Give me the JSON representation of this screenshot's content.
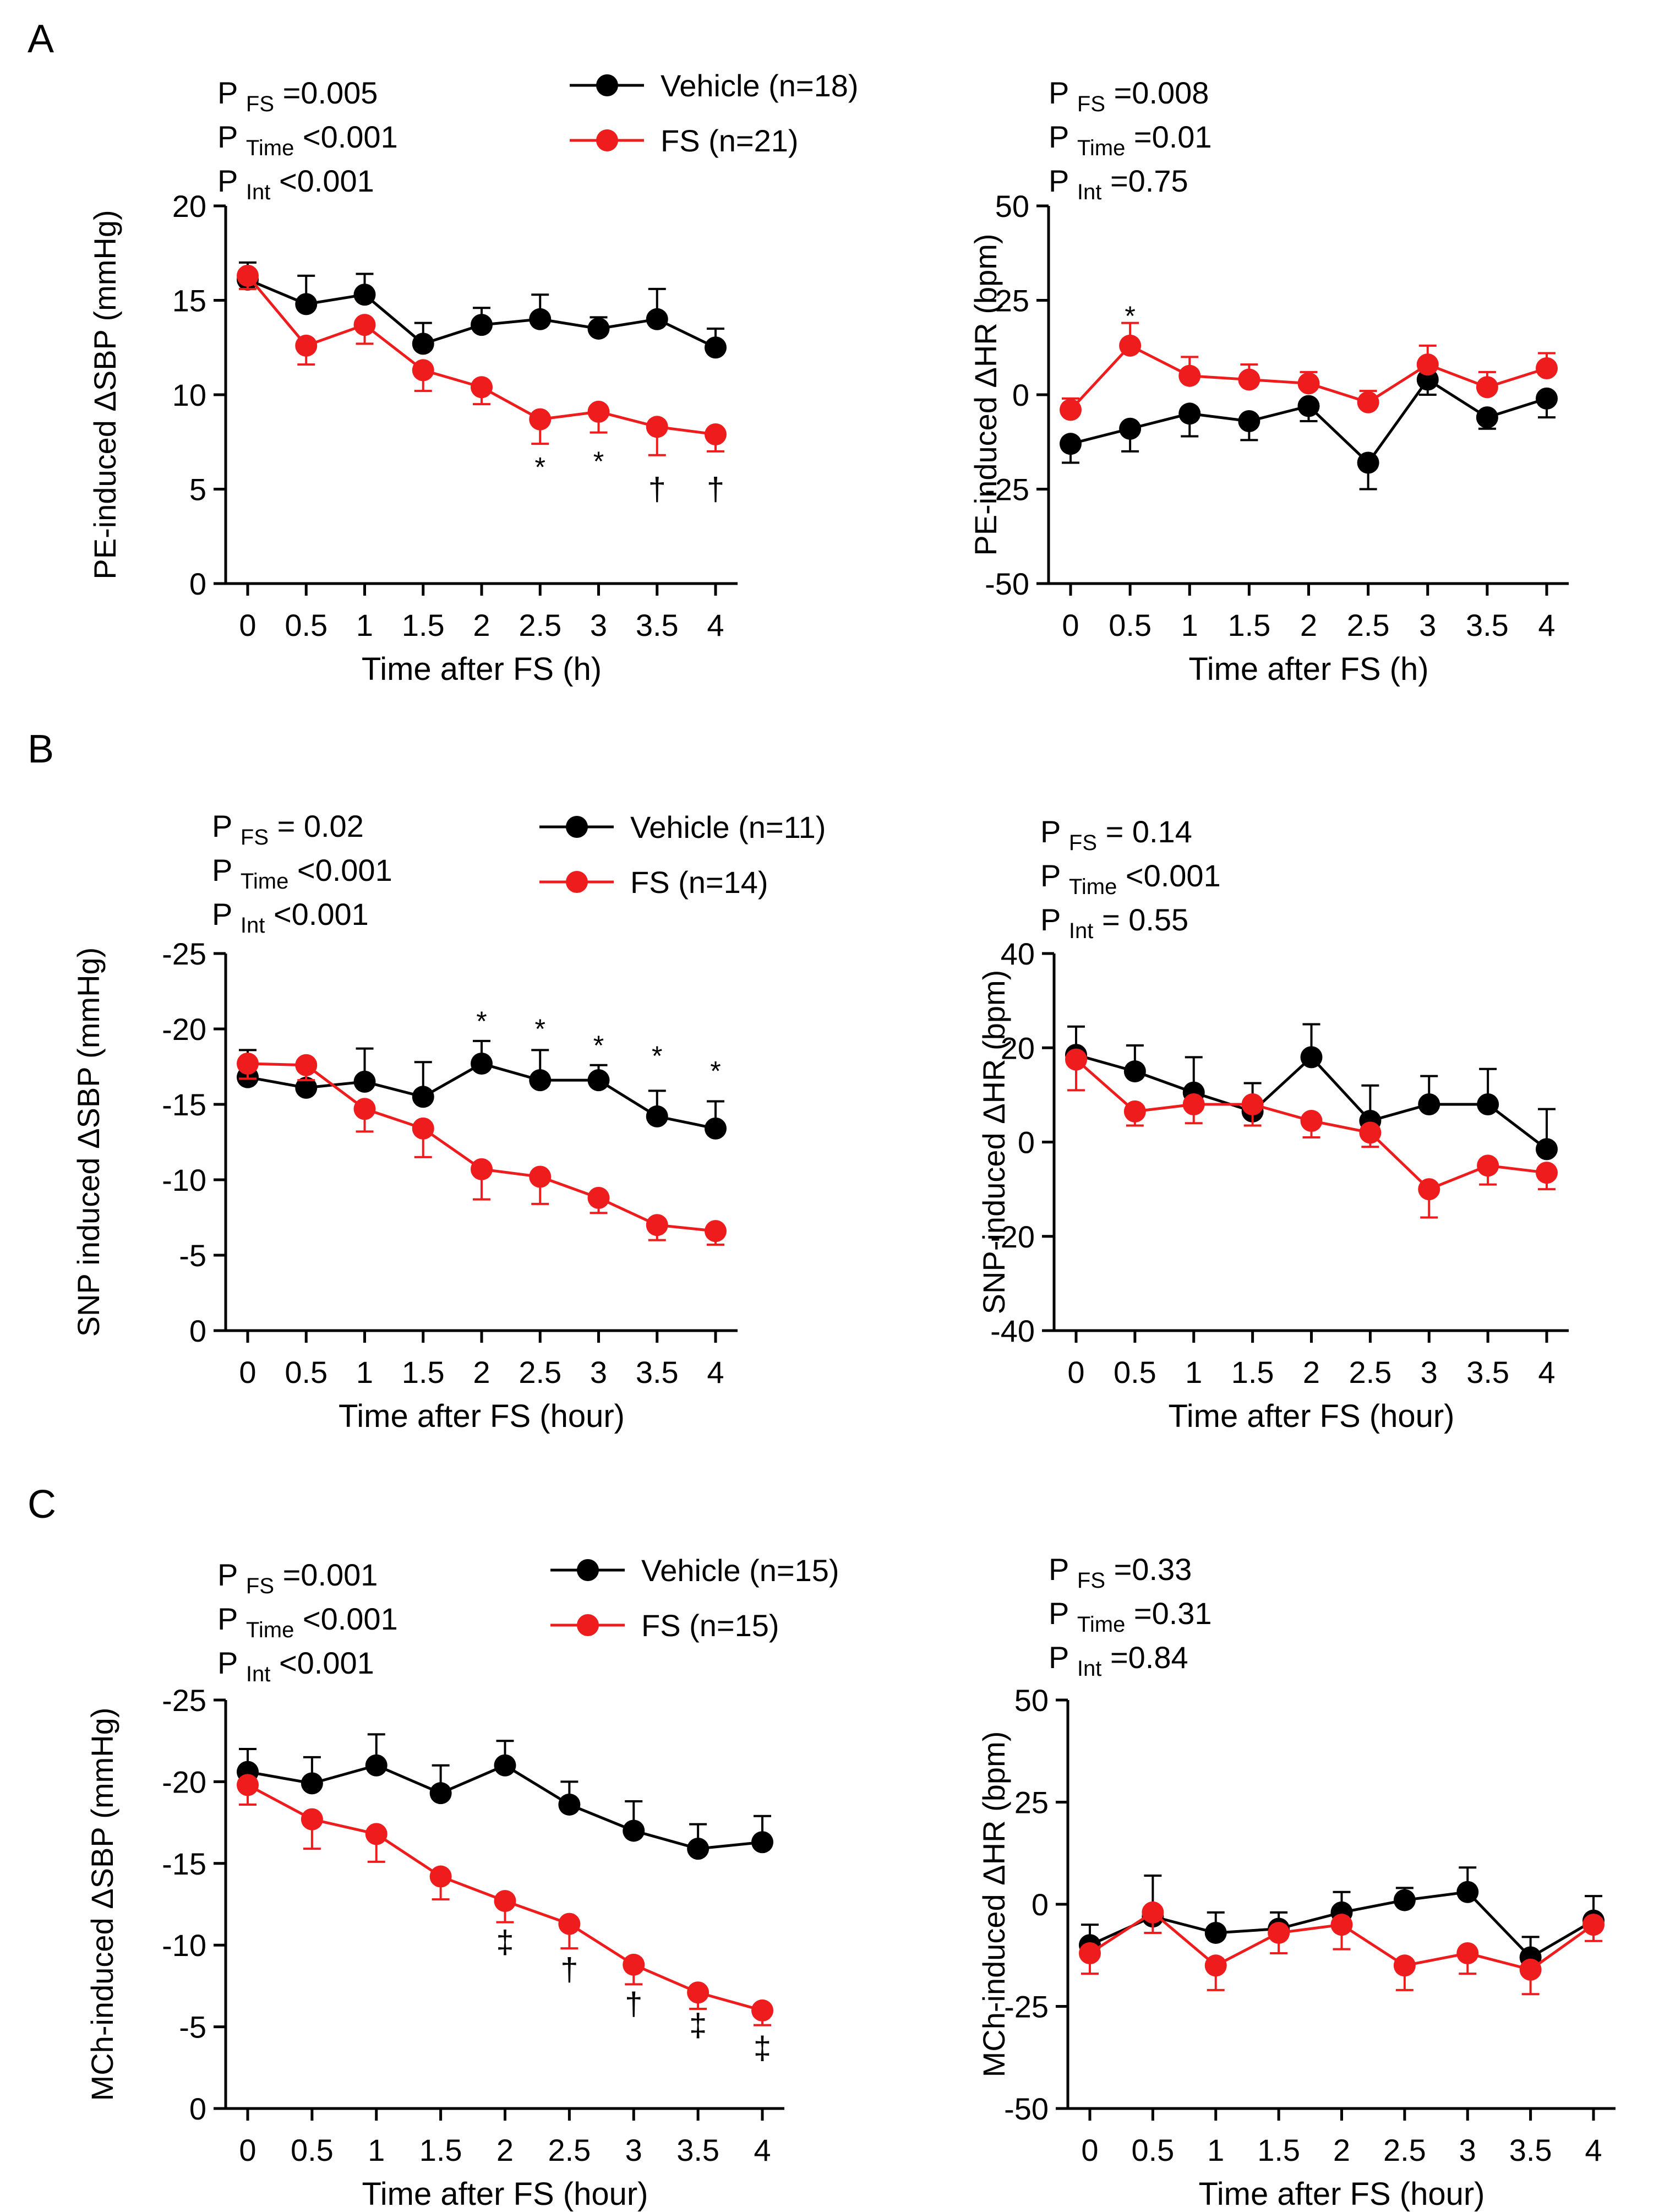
{
  "colors": {
    "vehicle": "#000000",
    "fs": "#ee1c1c"
  },
  "chart_data": [
    {
      "id": "A-left",
      "type": "line",
      "panel_label": "A",
      "title": "",
      "ylabel": "PE-induced ΔSBP (mmHg)",
      "xlabel": "Time after FS (h)",
      "ylim": [
        0,
        20
      ],
      "reversed": false,
      "yticks": [
        0,
        5,
        10,
        15,
        20
      ],
      "ytick_labels": [
        "0",
        "5",
        "10",
        "15",
        "20"
      ],
      "x": [
        0,
        0.5,
        1,
        1.5,
        2,
        2.5,
        3,
        3.5,
        4
      ],
      "xtick_labels": [
        "0",
        "0.5",
        "1",
        "1.5",
        "2",
        "2.5",
        "3",
        "3.5",
        "4"
      ],
      "stats": [
        {
          "p": "P",
          "sub": "FS",
          "val": "=0.005"
        },
        {
          "p": "P",
          "sub": "Time",
          "val": "<0.001"
        },
        {
          "p": "P",
          "sub": "Int",
          "val": "<0.001"
        }
      ],
      "legend": [
        "Vehicle (n=18)",
        "FS (n=21)"
      ],
      "series": [
        {
          "name": "Vehicle (n=18)",
          "key": "vehicle",
          "values": [
            16.1,
            14.8,
            15.3,
            12.7,
            13.7,
            14.0,
            13.5,
            14.0,
            12.5
          ],
          "errors": [
            0.9,
            1.5,
            1.1,
            1.1,
            0.9,
            1.3,
            0.6,
            1.6,
            1.0
          ],
          "err_dir": "up"
        },
        {
          "name": "FS (n=21)",
          "key": "fs",
          "values": [
            16.3,
            12.6,
            13.7,
            11.3,
            10.4,
            8.7,
            9.1,
            8.3,
            7.9
          ],
          "errors": [
            0.7,
            1.0,
            1.0,
            1.1,
            0.9,
            1.3,
            1.1,
            1.5,
            0.9
          ],
          "err_dir": "down"
        }
      ],
      "annotations": [
        {
          "x": 2.5,
          "y": 6.4,
          "text": "*"
        },
        {
          "x": 3,
          "y": 6.7,
          "text": "*"
        },
        {
          "x": 3.5,
          "y": 5.0,
          "text": "†"
        },
        {
          "x": 4,
          "y": 5.0,
          "text": "†"
        }
      ]
    },
    {
      "id": "A-right",
      "type": "line",
      "title": "",
      "ylabel": "PE-induced ΔHR (bpm)",
      "xlabel": "Time after FS (h)",
      "ylim": [
        -50,
        50
      ],
      "reversed": false,
      "yticks": [
        -50,
        -25,
        0,
        25,
        50
      ],
      "ytick_labels": [
        "-50",
        "-25",
        "0",
        "25",
        "50"
      ],
      "x": [
        0,
        0.5,
        1,
        1.5,
        2,
        2.5,
        3,
        3.5,
        4
      ],
      "xtick_labels": [
        "0",
        "0.5",
        "1",
        "1.5",
        "2",
        "2.5",
        "3",
        "3.5",
        "4"
      ],
      "stats": [
        {
          "p": "P",
          "sub": "FS",
          "val": "=0.008"
        },
        {
          "p": "P",
          "sub": "Time",
          "val": "=0.01"
        },
        {
          "p": "P",
          "sub": "Int",
          "val": "=0.75"
        }
      ],
      "legend": [],
      "series": [
        {
          "name": "Vehicle (n=18)",
          "key": "vehicle",
          "values": [
            -13,
            -9,
            -5,
            -7,
            -3,
            -18,
            4,
            -6,
            -1
          ],
          "errors": [
            5,
            6,
            6,
            5,
            4,
            7,
            4,
            3,
            5
          ],
          "err_dir": "down"
        },
        {
          "name": "FS (n=21)",
          "key": "fs",
          "values": [
            -4,
            13,
            5,
            4,
            3,
            -2,
            8,
            2,
            7
          ],
          "errors": [
            3,
            6,
            5,
            4,
            3,
            3,
            5,
            4,
            4
          ],
          "err_dir": "up"
        }
      ],
      "annotations": [
        {
          "x": 0.5,
          "y": 22,
          "text": "*"
        }
      ]
    },
    {
      "id": "B-left",
      "type": "line",
      "panel_label": "B",
      "title": "",
      "ylabel": "SNP induced ΔSBP (mmHg)",
      "xlabel": "Time after FS (hour)",
      "ylim": [
        0,
        -25
      ],
      "reversed": true,
      "yticks": [
        0,
        -5,
        -10,
        -15,
        -20,
        -25
      ],
      "ytick_labels": [
        "0",
        "-5",
        "-10",
        "-15",
        "-20",
        "-25"
      ],
      "x": [
        0,
        0.5,
        1,
        1.5,
        2,
        2.5,
        3,
        3.5,
        4
      ],
      "xtick_labels": [
        "0",
        "0.5",
        "1",
        "1.5",
        "2",
        "2.5",
        "3",
        "3.5",
        "4"
      ],
      "stats": [
        {
          "p": "P",
          "sub": "FS",
          "val": "= 0.02"
        },
        {
          "p": "P",
          "sub": "Time",
          "val": "<0.001"
        },
        {
          "p": "P",
          "sub": "Int",
          "val": "<0.001"
        }
      ],
      "legend": [
        "Vehicle (n=11)",
        "FS (n=14)"
      ],
      "series": [
        {
          "name": "Vehicle (n=11)",
          "key": "vehicle",
          "values": [
            -16.8,
            -16.1,
            -16.5,
            -15.5,
            -17.7,
            -16.6,
            -16.6,
            -14.2,
            -13.4
          ],
          "errors": [
            1.8,
            1.2,
            2.2,
            2.3,
            1.5,
            2.0,
            1.0,
            1.7,
            1.8
          ],
          "err_dir": "up"
        },
        {
          "name": "FS (n=14)",
          "key": "fs",
          "values": [
            -17.7,
            -17.6,
            -14.7,
            -13.4,
            -10.7,
            -10.2,
            -8.8,
            -7.0,
            -6.6
          ],
          "errors": [
            1.0,
            1.0,
            1.5,
            1.9,
            2.0,
            1.8,
            1.0,
            1.0,
            0.9
          ],
          "err_dir": "down"
        }
      ],
      "annotations": [
        {
          "x": 2,
          "y": -20.8,
          "text": "*"
        },
        {
          "x": 2.5,
          "y": -20.3,
          "text": "*"
        },
        {
          "x": 3,
          "y": -19.2,
          "text": "*"
        },
        {
          "x": 3.5,
          "y": -18.5,
          "text": "*"
        },
        {
          "x": 4,
          "y": -17.5,
          "text": "*"
        }
      ]
    },
    {
      "id": "B-right",
      "type": "line",
      "title": "",
      "ylabel": "SNP-induced ΔHR (bpm)",
      "xlabel": "Time after FS (hour)",
      "ylim": [
        -40,
        40
      ],
      "reversed": false,
      "yticks": [
        -40,
        -20,
        0,
        20,
        40
      ],
      "ytick_labels": [
        "-40",
        "-20",
        "0",
        "20",
        "40"
      ],
      "x": [
        0,
        0.5,
        1,
        1.5,
        2,
        2.5,
        3,
        3.5,
        4
      ],
      "xtick_labels": [
        "0",
        "0.5",
        "1",
        "1.5",
        "2",
        "2.5",
        "3",
        "3.5",
        "4"
      ],
      "stats": [
        {
          "p": "P",
          "sub": "FS",
          "val": "= 0.14"
        },
        {
          "p": "P",
          "sub": "Time",
          "val": "<0.001"
        },
        {
          "p": "P",
          "sub": "Int",
          "val": "= 0.55"
        }
      ],
      "legend": [],
      "series": [
        {
          "name": "Vehicle (n=11)",
          "key": "vehicle",
          "values": [
            18.5,
            15,
            10.5,
            6.5,
            18,
            4.5,
            8,
            8,
            -1.5
          ],
          "errors": [
            6,
            5.5,
            7.5,
            6,
            7,
            7.5,
            6,
            7.5,
            8.5
          ],
          "err_dir": "up"
        },
        {
          "name": "FS (n=14)",
          "key": "fs",
          "values": [
            17.5,
            6.5,
            8,
            8,
            4.5,
            2,
            -10,
            -5,
            -6.5
          ],
          "errors": [
            6.5,
            3,
            4,
            4.5,
            3.5,
            3,
            6,
            4,
            3.5
          ],
          "err_dir": "down"
        }
      ],
      "annotations": []
    },
    {
      "id": "C-left",
      "type": "line",
      "panel_label": "C",
      "title": "",
      "ylabel": "MCh-induced ΔSBP (mmHg)",
      "xlabel": "Time after FS (hour)",
      "ylim": [
        0,
        -25
      ],
      "reversed": true,
      "yticks": [
        0,
        -5,
        -10,
        -15,
        -20,
        -25
      ],
      "ytick_labels": [
        "0",
        "-5",
        "-10",
        "-15",
        "-20",
        "-25"
      ],
      "x": [
        0,
        0.5,
        1,
        1.5,
        2,
        2.5,
        3,
        3.5,
        4
      ],
      "xtick_labels": [
        "0",
        "0.5",
        "1",
        "1.5",
        "2",
        "2.5",
        "3",
        "3.5",
        "4"
      ],
      "stats": [
        {
          "p": "P",
          "sub": "FS",
          "val": "=0.001"
        },
        {
          "p": "P",
          "sub": "Time",
          "val": "<0.001"
        },
        {
          "p": "P",
          "sub": "Int",
          "val": "<0.001"
        }
      ],
      "legend": [
        "Vehicle (n=15)",
        "FS (n=15)"
      ],
      "series": [
        {
          "name": "Vehicle (n=15)",
          "key": "vehicle",
          "values": [
            -20.6,
            -19.9,
            -21.0,
            -19.3,
            -21.0,
            -18.6,
            -17.0,
            -15.9,
            -16.3
          ],
          "errors": [
            1.4,
            1.6,
            1.9,
            1.7,
            1.5,
            1.4,
            1.8,
            1.5,
            1.6
          ],
          "err_dir": "up"
        },
        {
          "name": "FS (n=15)",
          "key": "fs",
          "values": [
            -19.8,
            -17.7,
            -16.8,
            -14.2,
            -12.7,
            -11.3,
            -8.8,
            -7.1,
            -6.0
          ],
          "errors": [
            1.2,
            1.8,
            1.7,
            1.4,
            1.3,
            1.5,
            1.2,
            1.0,
            0.9
          ],
          "err_dir": "down"
        }
      ],
      "annotations": [
        {
          "x": 2,
          "y": -10.2,
          "text": "‡"
        },
        {
          "x": 2.5,
          "y": -8.5,
          "text": "†"
        },
        {
          "x": 3,
          "y": -6.4,
          "text": "†"
        },
        {
          "x": 3.5,
          "y": -5.1,
          "text": "‡"
        },
        {
          "x": 4,
          "y": -3.7,
          "text": "‡"
        }
      ]
    },
    {
      "id": "C-right",
      "type": "line",
      "title": "",
      "ylabel": "MCh-induced ΔHR (bpm)",
      "xlabel": "Time after FS (hour)",
      "ylim": [
        -50,
        50
      ],
      "reversed": false,
      "yticks": [
        -50,
        -25,
        0,
        25,
        50
      ],
      "ytick_labels": [
        "-50",
        "-25",
        "0",
        "25",
        "50"
      ],
      "x": [
        0,
        0.5,
        1,
        1.5,
        2,
        2.5,
        3,
        3.5,
        4
      ],
      "xtick_labels": [
        "0",
        "0.5",
        "1",
        "1.5",
        "2",
        "2.5",
        "3",
        "3.5",
        "4"
      ],
      "stats": [
        {
          "p": "P",
          "sub": "FS",
          "val": "=0.33"
        },
        {
          "p": "P",
          "sub": "Time",
          "val": "=0.31"
        },
        {
          "p": "P",
          "sub": "Int",
          "val": "=0.84"
        }
      ],
      "legend": [],
      "series": [
        {
          "name": "Vehicle (n=15)",
          "key": "vehicle",
          "values": [
            -10,
            -3,
            -7,
            -6,
            -2,
            1,
            3,
            -13,
            -4
          ],
          "errors": [
            5,
            10,
            5,
            4,
            5,
            3,
            6,
            5,
            6
          ],
          "err_dir": "up"
        },
        {
          "name": "FS (n=15)",
          "key": "fs",
          "values": [
            -12,
            -2,
            -15,
            -7,
            -5,
            -15,
            -12,
            -16,
            -5
          ],
          "errors": [
            5,
            5,
            6,
            5,
            6,
            6,
            5,
            6,
            4
          ],
          "err_dir": "down"
        }
      ],
      "annotations": []
    }
  ]
}
